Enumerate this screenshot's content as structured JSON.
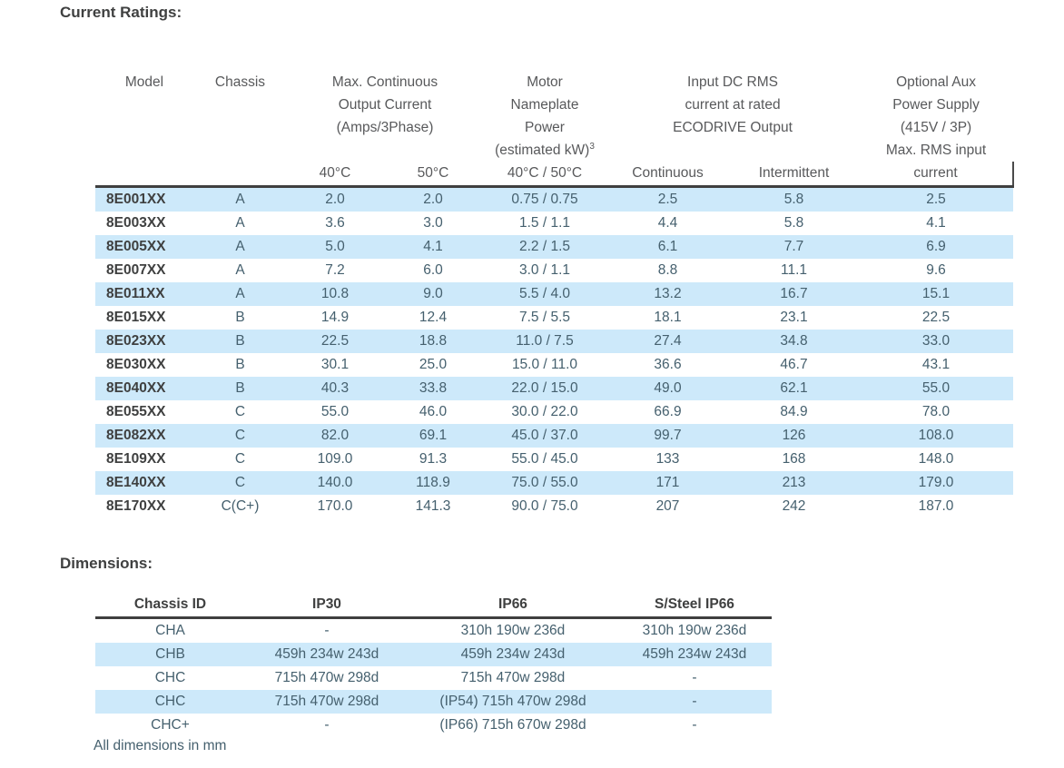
{
  "colors": {
    "row_highlight": "#CDE9FA",
    "rule_dark": "#3F3F3F",
    "title_text": "#3F4040",
    "header_text": "#58595B",
    "data_text": "#45606E"
  },
  "current_ratings": {
    "title": "Current Ratings:",
    "model_header": "Model",
    "chassis_header": "Chassis",
    "group_max_continuous": {
      "lines": [
        "Max. Continuous",
        "Output Current",
        "(Amps/3Phase)"
      ]
    },
    "group_motor": {
      "lines": [
        "Motor",
        "Nameplate",
        "Power"
      ],
      "last_line": "(estimated kW)",
      "superscript": "3"
    },
    "group_input_dc": {
      "lines": [
        "Input DC RMS",
        "current at rated",
        "ECODRIVE Output"
      ]
    },
    "group_aux": {
      "lines": [
        "Optional Aux",
        "Power Supply",
        "(415V / 3P)",
        "Max. RMS input"
      ]
    },
    "sub_headers": [
      "40°C",
      "50°C",
      "40°C / 50°C",
      "Continuous",
      "Intermittent",
      "current"
    ],
    "rows": [
      {
        "model": "8E001XX",
        "chassis": "A",
        "amps_40c": "2.0",
        "amps_50c": "2.0",
        "kw": "0.75 / 0.75",
        "dc_continuous": "2.5",
        "dc_intermittent": "5.8",
        "aux": "2.5",
        "highlight": true
      },
      {
        "model": "8E003XX",
        "chassis": "A",
        "amps_40c": "3.6",
        "amps_50c": "3.0",
        "kw": "1.5 / 1.1",
        "dc_continuous": "4.4",
        "dc_intermittent": "5.8",
        "aux": "4.1",
        "highlight": false
      },
      {
        "model": "8E005XX",
        "chassis": "A",
        "amps_40c": "5.0",
        "amps_50c": "4.1",
        "kw": "2.2 / 1.5",
        "dc_continuous": "6.1",
        "dc_intermittent": "7.7",
        "aux": "6.9",
        "highlight": true
      },
      {
        "model": "8E007XX",
        "chassis": "A",
        "amps_40c": "7.2",
        "amps_50c": "6.0",
        "kw": "3.0 / 1.1",
        "dc_continuous": "8.8",
        "dc_intermittent": "11.1",
        "aux": "9.6",
        "highlight": false
      },
      {
        "model": "8E011XX",
        "chassis": "A",
        "amps_40c": "10.8",
        "amps_50c": "9.0",
        "kw": "5.5 / 4.0",
        "dc_continuous": "13.2",
        "dc_intermittent": "16.7",
        "aux": "15.1",
        "highlight": true
      },
      {
        "model": "8E015XX",
        "chassis": "B",
        "amps_40c": "14.9",
        "amps_50c": "12.4",
        "kw": "7.5 / 5.5",
        "dc_continuous": "18.1",
        "dc_intermittent": "23.1",
        "aux": "22.5",
        "highlight": false
      },
      {
        "model": "8E023XX",
        "chassis": "B",
        "amps_40c": "22.5",
        "amps_50c": "18.8",
        "kw": "11.0 / 7.5",
        "dc_continuous": "27.4",
        "dc_intermittent": "34.8",
        "aux": "33.0",
        "highlight": true
      },
      {
        "model": "8E030XX",
        "chassis": "B",
        "amps_40c": "30.1",
        "amps_50c": "25.0",
        "kw": "15.0 / 11.0",
        "dc_continuous": "36.6",
        "dc_intermittent": "46.7",
        "aux": "43.1",
        "highlight": false
      },
      {
        "model": "8E040XX",
        "chassis": "B",
        "amps_40c": "40.3",
        "amps_50c": "33.8",
        "kw": "22.0 / 15.0",
        "dc_continuous": "49.0",
        "dc_intermittent": "62.1",
        "aux": "55.0",
        "highlight": true
      },
      {
        "model": "8E055XX",
        "chassis": "C",
        "amps_40c": "55.0",
        "amps_50c": "46.0",
        "kw": "30.0 / 22.0",
        "dc_continuous": "66.9",
        "dc_intermittent": "84.9",
        "aux": "78.0",
        "highlight": false
      },
      {
        "model": "8E082XX",
        "chassis": "C",
        "amps_40c": "82.0",
        "amps_50c": "69.1",
        "kw": "45.0 / 37.0",
        "dc_continuous": "99.7",
        "dc_intermittent": "126",
        "aux": "108.0",
        "highlight": true
      },
      {
        "model": "8E109XX",
        "chassis": "C",
        "amps_40c": "109.0",
        "amps_50c": "91.3",
        "kw": "55.0 / 45.0",
        "dc_continuous": "133",
        "dc_intermittent": "168",
        "aux": "148.0",
        "highlight": false
      },
      {
        "model": "8E140XX",
        "chassis": "C",
        "amps_40c": "140.0",
        "amps_50c": "118.9",
        "kw": "75.0 / 55.0",
        "dc_continuous": "171",
        "dc_intermittent": "213",
        "aux": "179.0",
        "highlight": true
      },
      {
        "model": "8E170XX",
        "chassis": "C(C+)",
        "amps_40c": "170.0",
        "amps_50c": "141.3",
        "kw": "90.0 / 75.0",
        "dc_continuous": "207",
        "dc_intermittent": "242",
        "aux": "187.0",
        "highlight": false
      }
    ]
  },
  "dimensions": {
    "title": "Dimensions:",
    "headers": [
      "Chassis ID",
      "IP30",
      "IP66",
      "S/Steel IP66"
    ],
    "rows": [
      {
        "chassis_id": "CHA",
        "ip30": "-",
        "ip66": "310h 190w 236d",
        "ssteel_ip66": "310h 190w 236d",
        "highlight": false
      },
      {
        "chassis_id": "CHB",
        "ip30": "459h 234w 243d",
        "ip66": "459h 234w 243d",
        "ssteel_ip66": "459h 234w 243d",
        "highlight": true
      },
      {
        "chassis_id": "CHC",
        "ip30": "715h 470w 298d",
        "ip66": "715h 470w 298d",
        "ssteel_ip66": "-",
        "highlight": false
      },
      {
        "chassis_id": "CHC",
        "ip30": "715h 470w 298d",
        "ip66": "(IP54) 715h 470w 298d",
        "ssteel_ip66": "-",
        "highlight": true
      },
      {
        "chassis_id": "CHC+",
        "ip30": "-",
        "ip66": "(IP66) 715h 670w 298d",
        "ssteel_ip66": "-",
        "highlight": false
      }
    ],
    "footnote": "All dimensions in mm"
  }
}
